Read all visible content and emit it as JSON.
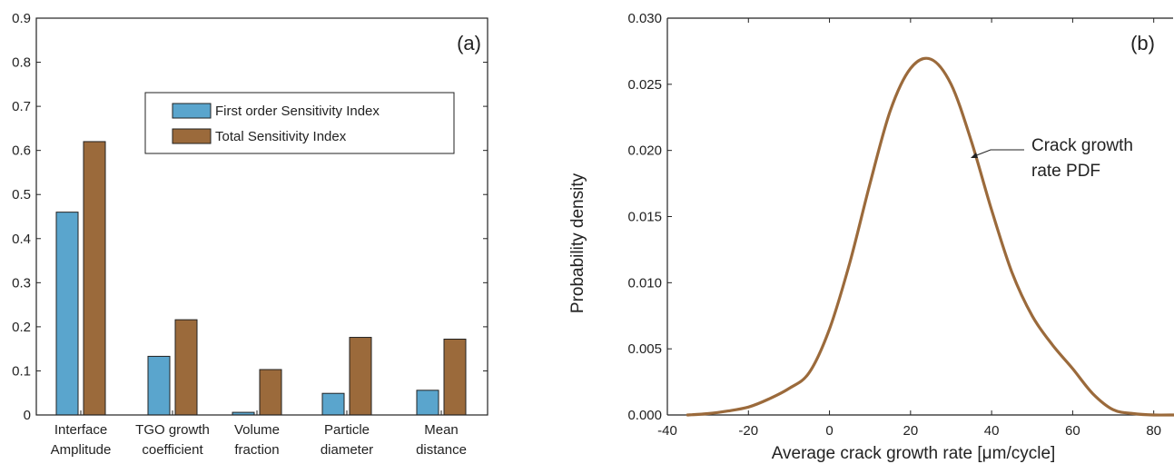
{
  "chart_data": [
    {
      "type": "bar",
      "panel_label": "(a)",
      "categories": [
        [
          "Interface",
          "Amplitude"
        ],
        [
          "TGO growth",
          "coefficient"
        ],
        [
          "Volume",
          "fraction"
        ],
        [
          "Particle",
          "diameter"
        ],
        [
          "Mean",
          "distance"
        ]
      ],
      "series": [
        {
          "name": "First order Sensitivity Index",
          "color": "#5aa5cd",
          "values": [
            0.46,
            0.133,
            0.006,
            0.049,
            0.056
          ]
        },
        {
          "name": "Total Sensitivity Index",
          "color": "#9b6a3b",
          "values": [
            0.62,
            0.216,
            0.103,
            0.176,
            0.172
          ]
        }
      ],
      "ylim": [
        0,
        0.9
      ],
      "yticks": [
        "0",
        "0.1",
        "0.2",
        "0.3",
        "0.4",
        "0.5",
        "0.6",
        "0.7",
        "0.8",
        "0.9"
      ],
      "xlabel": "",
      "ylabel": "",
      "legend_position": "upper-right"
    },
    {
      "type": "line",
      "panel_label": "(b)",
      "xlabel": "Average crack growth rate [μm/cycle]",
      "ylabel": "Probability density",
      "xlim": [
        -40,
        85
      ],
      "ylim": [
        0,
        0.03
      ],
      "xticks": [
        "-40",
        "-20",
        "0",
        "20",
        "40",
        "60",
        "80"
      ],
      "yticks": [
        "0.000",
        "0.005",
        "0.010",
        "0.015",
        "0.020",
        "0.025",
        "0.030"
      ],
      "series": [
        {
          "color": "#9b6a3b",
          "x": [
            -35,
            -30,
            -25,
            -20,
            -15,
            -10,
            -5,
            0,
            5,
            10,
            15,
            20,
            25,
            30,
            35,
            40,
            45,
            50,
            55,
            60,
            65,
            70,
            75,
            80,
            85
          ],
          "y": [
            0.0,
            0.0001,
            0.0003,
            0.0006,
            0.0012,
            0.002,
            0.0032,
            0.0065,
            0.0115,
            0.0175,
            0.023,
            0.0262,
            0.0269,
            0.025,
            0.0207,
            0.0155,
            0.0108,
            0.0075,
            0.0053,
            0.0035,
            0.0016,
            0.0004,
            0.0001,
            0.0,
            0.0
          ]
        }
      ],
      "annotation": [
        "Crack growth",
        "rate PDF"
      ]
    }
  ]
}
